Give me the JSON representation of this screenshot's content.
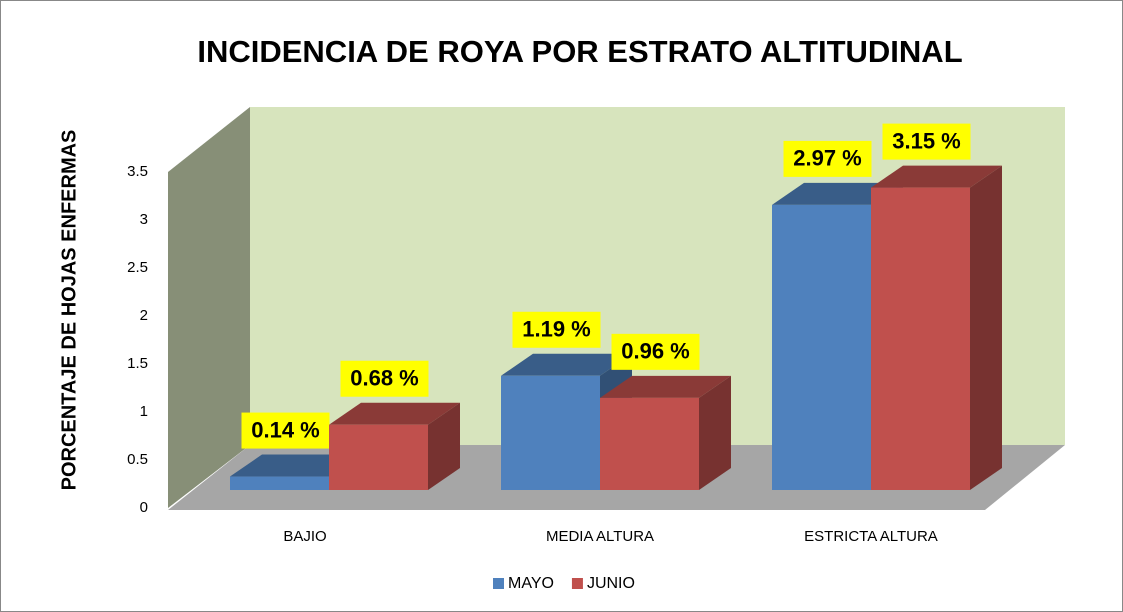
{
  "chart_data": {
    "type": "bar",
    "title": "INCIDENCIA DE ROYA POR ESTRATO ALTITUDINAL",
    "y_label": "PORCENTAJE DE HOJAS ENFERMAS",
    "categories": [
      "BAJIO",
      "MEDIA ALTURA",
      "ESTRICTA ALTURA"
    ],
    "series": [
      {
        "name": "MAYO",
        "color": "#4f81bd",
        "values": [
          0.14,
          1.19,
          2.97
        ],
        "value_labels": [
          "0.14 %",
          "1.19 %",
          "2.97 %"
        ]
      },
      {
        "name": "JUNIO",
        "color": "#c0504d",
        "values": [
          0.68,
          0.96,
          3.15
        ],
        "value_labels": [
          "0.68 %",
          "0.96 %",
          "3.15 %"
        ]
      }
    ],
    "ylim": [
      0,
      3.5
    ],
    "yticks": [
      0,
      0.5,
      1,
      1.5,
      2,
      2.5,
      3,
      3.5
    ],
    "legend": "bottom"
  }
}
